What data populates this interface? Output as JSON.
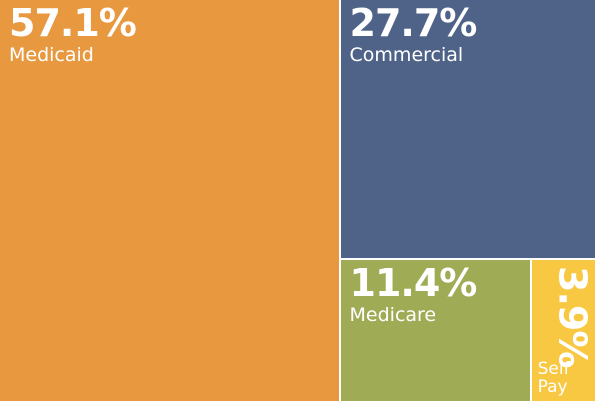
{
  "chart_data": {
    "type": "treemap",
    "categories": [
      "Medicaid",
      "Commercial",
      "Medicare",
      "Self Pay"
    ],
    "values": [
      57.1,
      27.7,
      11.4,
      3.9
    ],
    "value_labels": [
      "57.1%",
      "27.7%",
      "11.4%",
      "3.9%"
    ],
    "colors": [
      "#e8993f",
      "#4f6388",
      "#a0ac55",
      "#f9c842"
    ]
  }
}
